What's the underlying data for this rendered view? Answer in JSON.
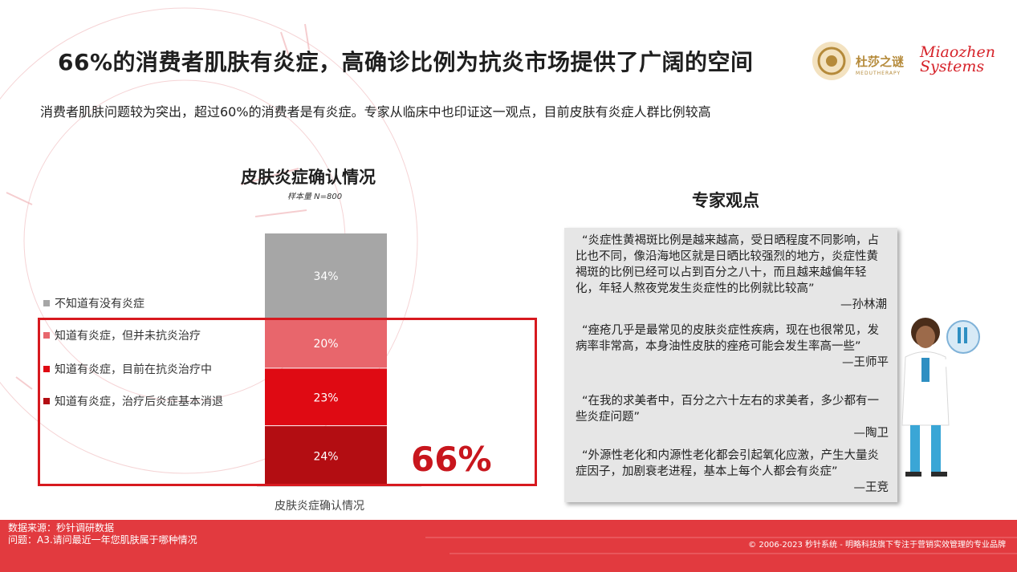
{
  "header": {
    "title": "66%的消费者肌肤有炎症，高确诊比例为抗炎市场提供了广阔的空间",
    "subtitle": "消费者肌肤问题较为突出，超过60%的消费者是有炎症。专家从临床中也印证这一观点，目前皮肤有炎症人群比例较高"
  },
  "logo": {
    "brand_text": "杜莎之谜",
    "brand_sub": "MEDUTHERAPY",
    "miaozhen_line1": "Miaozhen",
    "miaozhen_line2": "Systems"
  },
  "chart_data": {
    "type": "bar",
    "stacked": true,
    "title": "皮肤炎症确认情况",
    "sample_note": "样本量 N=800",
    "categories": [
      "皮肤炎症确认情况"
    ],
    "series": [
      {
        "name": "知道有炎症，治疗后炎症基本消退",
        "values": [
          24
        ],
        "label": "24%",
        "color": "#b30d12"
      },
      {
        "name": "知道有炎症，目前在抗炎治疗中",
        "values": [
          23
        ],
        "label": "23%",
        "color": "#df0a13"
      },
      {
        "name": "知道有炎症，但并未抗炎治疗",
        "values": [
          20
        ],
        "label": "20%",
        "color": "#e8666c"
      },
      {
        "name": "不知道有没有炎症",
        "values": [
          34
        ],
        "label": "34%",
        "color": "#a6a6a6"
      }
    ],
    "ylim": [
      0,
      100
    ],
    "highlight_value": "66%"
  },
  "legend": [
    {
      "label": "不知道有没有炎症",
      "color": "#a6a6a6"
    },
    {
      "label": "知道有炎症，但并未抗炎治疗",
      "color": "#e8666c"
    },
    {
      "label": "知道有炎症，目前在抗炎治疗中",
      "color": "#df0a13"
    },
    {
      "label": "知道有炎症，治疗后炎症基本消退",
      "color": "#b30d12"
    }
  ],
  "experts": {
    "title": "专家观点",
    "quotes": [
      {
        "text": "“炎症性黄褐斑比例是越来越高，受日晒程度不同影响，占比也不同，像沿海地区就是日晒比较强烈的地方，炎症性黄褐斑的比例已经可以占到百分之八十，而且越来越偏年轻化，年轻人熬夜党发生炎症性的比例就比较高”",
        "author": "—孙林潮"
      },
      {
        "text": "“痤疮几乎是最常见的皮肤炎症性疾病，现在也很常见，发病率非常高，本身油性皮肤的痤疮可能会发生率高一些”",
        "author": "—王师平"
      },
      {
        "text": "“在我的求美者中，百分之六十左右的求美者，多少都有一些炎症问题”",
        "author": "—陶卫"
      },
      {
        "text": "“外源性老化和内源性老化都会引起氧化应激，产生大量炎症因子，加剧衰老进程，基本上每个人都会有炎症”",
        "author": "—王竞"
      }
    ]
  },
  "footer": {
    "source": "数据来源：秒针调研数据",
    "question": "问题：A3.请问最近一年您肌肤属于哪种情况",
    "copyright": "© 2006-2023 秒针系统 - 明略科技旗下专注于营销实效管理的专业品牌"
  },
  "colors": {
    "accent": "#d7191f",
    "footer_bg": "#e23a3f"
  }
}
